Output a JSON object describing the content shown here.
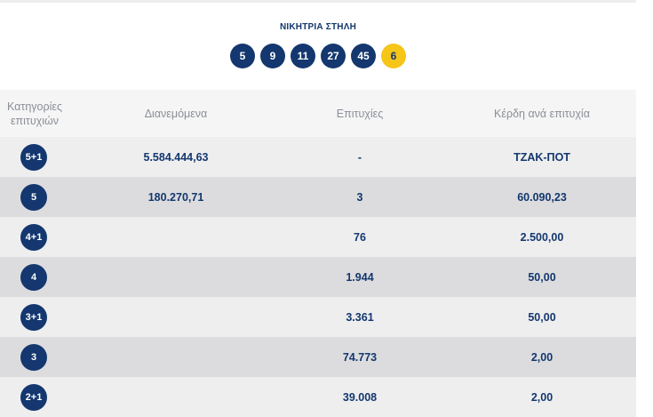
{
  "draw": {
    "title": "ΝΙΚΗΤΡΙΑ ΣΤΗΛΗ",
    "numbers": [
      "5",
      "9",
      "11",
      "27",
      "45"
    ],
    "joker": "6"
  },
  "table": {
    "headers": {
      "category_line1": "Κατηγορίες",
      "category_line2": "επιτυχιών",
      "distributed": "Διανεμόμενα",
      "winners": "Επιτυχίες",
      "prize": "Κέρδη ανά επιτυχία"
    },
    "rows": [
      {
        "category": "5+1",
        "distributed": "5.584.444,63",
        "winners": "-",
        "prize": "ΤΖΑΚ-ΠΟΤ"
      },
      {
        "category": "5",
        "distributed": "180.270,71",
        "winners": "3",
        "prize": "60.090,23"
      },
      {
        "category": "4+1",
        "distributed": "",
        "winners": "76",
        "prize": "2.500,00"
      },
      {
        "category": "4",
        "distributed": "",
        "winners": "1.944",
        "prize": "50,00"
      },
      {
        "category": "3+1",
        "distributed": "",
        "winners": "3.361",
        "prize": "50,00"
      },
      {
        "category": "3",
        "distributed": "",
        "winners": "74.773",
        "prize": "2,00"
      },
      {
        "category": "2+1",
        "distributed": "",
        "winners": "39.008",
        "prize": "2,00"
      }
    ]
  },
  "colors": {
    "navy": "#13376e",
    "joker_yellow": "#f5c518",
    "row_light": "#eeeeef",
    "row_dark": "#dcdcde",
    "header_bg": "#f5f5f6"
  }
}
